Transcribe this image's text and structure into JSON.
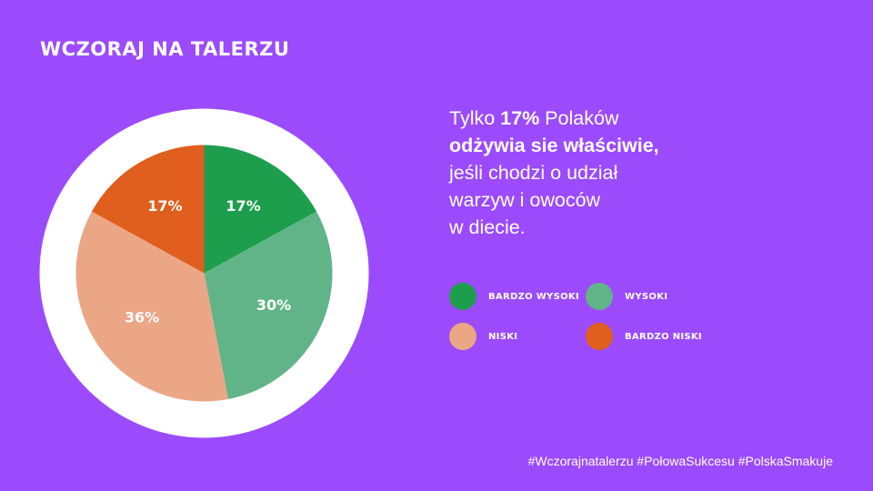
{
  "colors": {
    "background": "#9b4bfb",
    "ring": "#ffffff"
  },
  "header": {
    "title": "WCZORAJ NA TALERZU"
  },
  "description": {
    "l1_pre": "Tylko ",
    "l1_bold": "17%",
    "l1_post": " Polaków",
    "l2_bold": "odżywia sie właściwie,",
    "l3": "jeśli chodzi o udział",
    "l4": "warzyw i owoców",
    "l5": "w diecie."
  },
  "chart_data": {
    "type": "pie",
    "title": "",
    "start_angle_deg": 0,
    "direction": "clockwise",
    "slices": [
      {
        "label": "BARDZO WYSOKI",
        "value": 17,
        "display": "17%",
        "color": "#1d9e4c"
      },
      {
        "label": "WYSOKI",
        "value": 30,
        "display": "30%",
        "color": "#61b488"
      },
      {
        "label": "NISKI",
        "value": 36,
        "display": "36%",
        "color": "#eba685"
      },
      {
        "label": "BARDZO NISKI",
        "value": 17,
        "display": "17%",
        "color": "#e05e1e"
      }
    ],
    "legend_position": "right, below text, 2x2 grid"
  },
  "legend": {
    "items": [
      {
        "label": "BARDZO WYSOKI",
        "color": "#1d9e4c"
      },
      {
        "label": "WYSOKI",
        "color": "#61b488"
      },
      {
        "label": "NISKI",
        "color": "#eba685"
      },
      {
        "label": "BARDZO NISKI",
        "color": "#e05e1e"
      }
    ]
  },
  "footer": {
    "hashtags": "#Wczorajnatalerzu #PołowaSukcesu  #PolskaSmakuje"
  }
}
